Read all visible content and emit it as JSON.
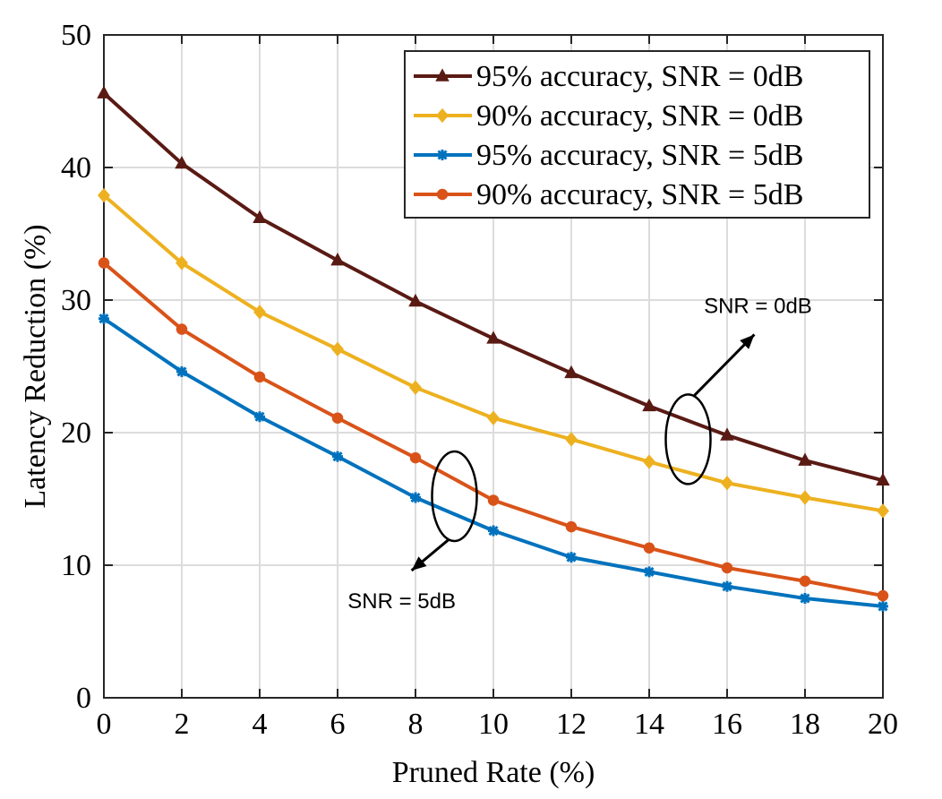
{
  "chart_data": {
    "type": "line",
    "title": "",
    "xlabel": "Pruned Rate (%)",
    "ylabel": "Latency Reduction (%)",
    "xlim": [
      0,
      20
    ],
    "ylim": [
      0,
      50
    ],
    "xticks": [
      0,
      2,
      4,
      6,
      8,
      10,
      12,
      14,
      16,
      18,
      20
    ],
    "yticks": [
      0,
      10,
      20,
      30,
      40,
      50
    ],
    "grid": true,
    "legend_position": "top-right",
    "x": [
      0,
      2,
      4,
      6,
      8,
      10,
      12,
      14,
      16,
      18,
      20
    ],
    "series": [
      {
        "name": "95% accuracy, SNR = 0dB",
        "color": "#5a1a14",
        "marker": "triangle",
        "values": [
          45.6,
          40.3,
          36.2,
          33.0,
          29.9,
          27.1,
          24.5,
          22.0,
          19.8,
          17.9,
          16.4
        ]
      },
      {
        "name": "90% accuracy, SNR = 0dB",
        "color": "#edb120",
        "marker": "diamond",
        "values": [
          37.9,
          32.8,
          29.1,
          26.3,
          23.4,
          21.1,
          19.5,
          17.8,
          16.2,
          15.1,
          14.1
        ]
      },
      {
        "name": "95% accuracy, SNR = 5dB",
        "color": "#0072bd",
        "marker": "star",
        "values": [
          28.6,
          24.6,
          21.2,
          18.2,
          15.1,
          12.6,
          10.6,
          9.5,
          8.4,
          7.5,
          6.9
        ]
      },
      {
        "name": "90% accuracy, SNR = 5dB",
        "color": "#d95319",
        "marker": "circle",
        "values": [
          32.8,
          27.8,
          24.2,
          21.1,
          18.1,
          14.9,
          12.9,
          11.3,
          9.8,
          8.8,
          7.7
        ]
      }
    ],
    "annotations": [
      {
        "text": "SNR = 0dB",
        "at_x": 15,
        "at_y": 19.5,
        "arrow_to_x": 16.7,
        "arrow_to_y": 27.4
      },
      {
        "text": "SNR = 5dB",
        "at_x": 9,
        "at_y": 15.2,
        "arrow_to_x": 7.9,
        "arrow_to_y": 9.6
      }
    ]
  }
}
